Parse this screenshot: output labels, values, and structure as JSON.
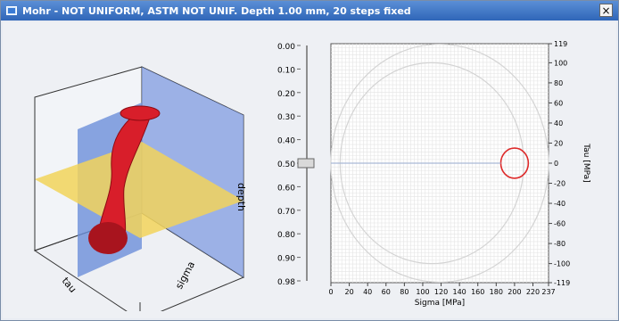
{
  "window": {
    "title": "Mohr - NOT UNIFORM, ASTM NOT UNIF. Depth 1.00 mm, 20 steps fixed",
    "close_label": "×"
  },
  "plot3d": {
    "labels": {
      "tau": "tau",
      "sigma": "sigma",
      "depth": "depth"
    }
  },
  "depth_slider": {
    "value": 0.5,
    "ticks": [
      "0.00",
      "0.10",
      "0.20",
      "0.30",
      "0.40",
      "0.50",
      "0.60",
      "0.70",
      "0.80",
      "0.90",
      "0.98"
    ]
  },
  "chart_data": {
    "type": "scatter",
    "xlabel": "Sigma [MPa]",
    "ylabel": "Tau [MPa]",
    "xlim": [
      0,
      237
    ],
    "ylim": [
      -119,
      119
    ],
    "x_ticks": [
      "0",
      "20",
      "40",
      "60",
      "80",
      "100",
      "120",
      "140",
      "160",
      "180",
      "200",
      "220",
      "237"
    ],
    "y_ticks": [
      "119",
      "100",
      "80",
      "60",
      "40",
      "20",
      "0",
      "-20",
      "-40",
      "-60",
      "-80",
      "-100",
      "-119"
    ],
    "circles": [
      {
        "center": 118.5,
        "radius": 118.5,
        "color": "#d4d4d4"
      },
      {
        "center": 110,
        "radius": 100,
        "color": "#d4d4d4"
      },
      {
        "center": 200,
        "radius": 15,
        "color": "#dd2a2a"
      }
    ],
    "axis_line": {
      "y": 0,
      "color": "#a9b9d6"
    },
    "grid": true
  }
}
